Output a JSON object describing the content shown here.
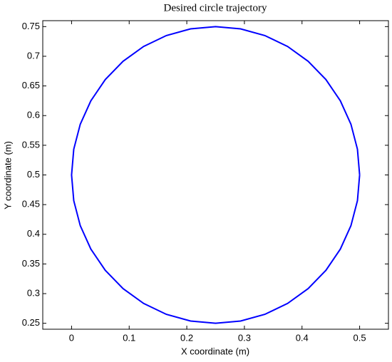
{
  "chart_data": {
    "type": "line",
    "title": "Desired circle trajectory",
    "x_label": "X coordinate (m)",
    "y_label": "Y coordinate (m)",
    "x": [
      0.5,
      0.4962,
      0.4849,
      0.4665,
      0.4415,
      0.4107,
      0.375,
      0.3355,
      0.2934,
      0.25,
      0.2066,
      0.1645,
      0.125,
      0.0893,
      0.0585,
      0.0335,
      0.0151,
      0.0038,
      0,
      0.0038,
      0.0151,
      0.0335,
      0.0585,
      0.0893,
      0.125,
      0.1645,
      0.2066,
      0.25,
      0.2934,
      0.3355,
      0.375,
      0.4107,
      0.4415,
      0.4665,
      0.4849,
      0.4962,
      0.5
    ],
    "series": [
      {
        "color": "#0000ff",
        "values": [
          0.5,
          0.5434,
          0.5855,
          0.625,
          0.6607,
          0.6915,
          0.7165,
          0.7349,
          0.7462,
          0.75,
          0.7462,
          0.7349,
          0.7165,
          0.6915,
          0.6607,
          0.625,
          0.5855,
          0.5434,
          0.5,
          0.4566,
          0.4145,
          0.375,
          0.3393,
          0.3085,
          0.2835,
          0.2651,
          0.2538,
          0.25,
          0.2538,
          0.2651,
          0.2835,
          0.3085,
          0.3393,
          0.375,
          0.4145,
          0.4566,
          0.5
        ]
      }
    ],
    "xlim": [
      -0.05,
      0.55
    ],
    "ylim": [
      0.24,
      0.76
    ],
    "xticks": [
      0,
      0.1,
      0.2,
      0.3,
      0.4,
      0.5
    ],
    "yticks": [
      0.25,
      0.3,
      0.35,
      0.4,
      0.45,
      0.5,
      0.55,
      0.6,
      0.65,
      0.7,
      0.75
    ]
  }
}
